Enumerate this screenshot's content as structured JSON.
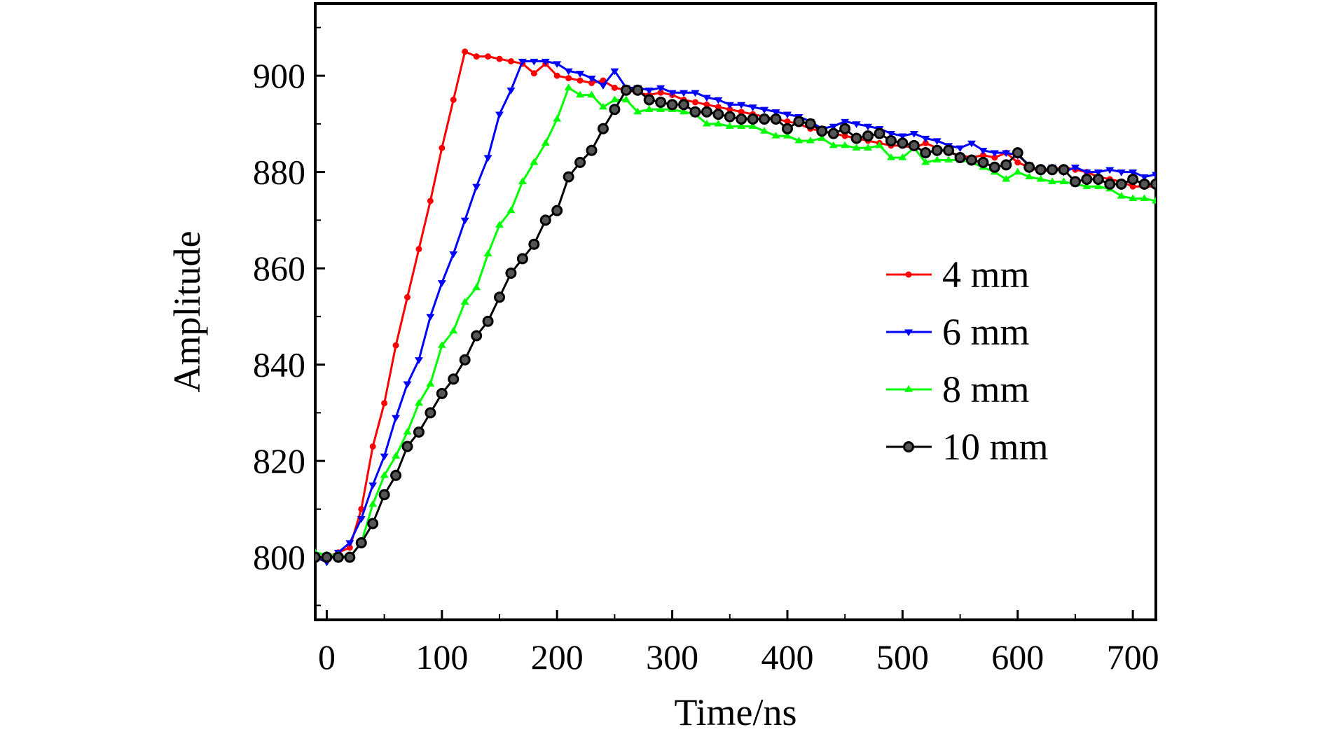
{
  "chart_data": {
    "type": "line",
    "xlabel": "Time/ns",
    "ylabel": "Amplitude",
    "xlim": [
      -10,
      720
    ],
    "ylim": [
      787,
      915
    ],
    "xticks": [
      0,
      100,
      200,
      300,
      400,
      500,
      600,
      700
    ],
    "yticks": [
      800,
      820,
      840,
      860,
      880,
      900
    ],
    "legend_position": "center-right",
    "series": [
      {
        "name": "4 mm",
        "color": "#ff0000",
        "marker": "dot",
        "points": [
          [
            -10,
            800
          ],
          [
            0,
            800
          ],
          [
            10,
            801
          ],
          [
            20,
            802
          ],
          [
            30,
            810
          ],
          [
            40,
            823
          ],
          [
            50,
            832
          ],
          [
            60,
            844
          ],
          [
            70,
            854
          ],
          [
            80,
            864
          ],
          [
            90,
            874
          ],
          [
            100,
            885
          ],
          [
            110,
            895
          ],
          [
            120,
            905
          ],
          [
            130,
            904
          ],
          [
            140,
            904
          ],
          [
            150,
            903.5
          ],
          [
            160,
            903
          ],
          [
            170,
            902.5
          ],
          [
            180,
            900.5
          ],
          [
            190,
            902.5
          ],
          [
            200,
            900
          ],
          [
            210,
            899.5
          ],
          [
            220,
            899
          ],
          [
            230,
            898.5
          ],
          [
            240,
            899
          ],
          [
            250,
            897.5
          ],
          [
            260,
            897
          ],
          [
            270,
            896.5
          ],
          [
            280,
            896
          ],
          [
            290,
            896.5
          ],
          [
            300,
            896
          ],
          [
            310,
            895
          ],
          [
            320,
            894.5
          ],
          [
            330,
            894
          ],
          [
            340,
            893.5
          ],
          [
            350,
            893
          ],
          [
            360,
            892.5
          ],
          [
            370,
            892
          ],
          [
            380,
            891.5
          ],
          [
            390,
            891
          ],
          [
            400,
            890.5
          ],
          [
            410,
            890
          ],
          [
            420,
            889
          ],
          [
            430,
            888.5
          ],
          [
            440,
            888
          ],
          [
            450,
            887.5
          ],
          [
            460,
            887
          ],
          [
            470,
            886.5
          ],
          [
            480,
            886
          ],
          [
            490,
            885.5
          ],
          [
            500,
            885.5
          ],
          [
            510,
            885
          ],
          [
            520,
            886
          ],
          [
            530,
            885
          ],
          [
            540,
            884
          ],
          [
            550,
            883.5
          ],
          [
            560,
            883
          ],
          [
            570,
            883.5
          ],
          [
            580,
            883
          ],
          [
            590,
            884
          ],
          [
            600,
            882
          ],
          [
            610,
            881
          ],
          [
            620,
            880
          ],
          [
            630,
            880.5
          ],
          [
            640,
            881
          ],
          [
            650,
            880.5
          ],
          [
            660,
            880
          ],
          [
            670,
            879
          ],
          [
            680,
            878.5
          ],
          [
            690,
            878
          ],
          [
            700,
            877
          ],
          [
            710,
            877
          ],
          [
            720,
            877
          ]
        ]
      },
      {
        "name": "6 mm",
        "color": "#0000ff",
        "marker": "triangle-down",
        "points": [
          [
            -10,
            800
          ],
          [
            0,
            799
          ],
          [
            10,
            801
          ],
          [
            20,
            803
          ],
          [
            30,
            808
          ],
          [
            40,
            815
          ],
          [
            50,
            821
          ],
          [
            60,
            829
          ],
          [
            70,
            836
          ],
          [
            80,
            841
          ],
          [
            90,
            850
          ],
          [
            100,
            857
          ],
          [
            110,
            863
          ],
          [
            120,
            870
          ],
          [
            130,
            877
          ],
          [
            140,
            883
          ],
          [
            150,
            892
          ],
          [
            160,
            897
          ],
          [
            170,
            903
          ],
          [
            180,
            903
          ],
          [
            190,
            903
          ],
          [
            200,
            902.5
          ],
          [
            210,
            901
          ],
          [
            220,
            900.5
          ],
          [
            230,
            899.5
          ],
          [
            240,
            898
          ],
          [
            250,
            901
          ],
          [
            260,
            897.5
          ],
          [
            270,
            897.5
          ],
          [
            280,
            897
          ],
          [
            290,
            897.5
          ],
          [
            300,
            896.5
          ],
          [
            310,
            896.5
          ],
          [
            320,
            896.5
          ],
          [
            330,
            895.5
          ],
          [
            340,
            895
          ],
          [
            350,
            894
          ],
          [
            360,
            894
          ],
          [
            370,
            893.5
          ],
          [
            380,
            893
          ],
          [
            390,
            892.5
          ],
          [
            400,
            892
          ],
          [
            410,
            891.5
          ],
          [
            420,
            890.5
          ],
          [
            430,
            889
          ],
          [
            440,
            889.5
          ],
          [
            450,
            890.5
          ],
          [
            460,
            890
          ],
          [
            470,
            889.5
          ],
          [
            480,
            889
          ],
          [
            490,
            888
          ],
          [
            500,
            887.5
          ],
          [
            510,
            888
          ],
          [
            520,
            887
          ],
          [
            530,
            886.5
          ],
          [
            540,
            885.5
          ],
          [
            550,
            885
          ],
          [
            560,
            886
          ],
          [
            570,
            884.5
          ],
          [
            580,
            884
          ],
          [
            590,
            884
          ],
          [
            600,
            883.5
          ],
          [
            610,
            881.5
          ],
          [
            620,
            880
          ],
          [
            630,
            881
          ],
          [
            640,
            880
          ],
          [
            650,
            881
          ],
          [
            660,
            880
          ],
          [
            670,
            880
          ],
          [
            680,
            880.5
          ],
          [
            690,
            880
          ],
          [
            700,
            880
          ],
          [
            710,
            879
          ],
          [
            720,
            879.5
          ]
        ]
      },
      {
        "name": "8 mm",
        "color": "#00ff00",
        "marker": "triangle-up",
        "points": [
          [
            -10,
            801
          ],
          [
            0,
            800.5
          ],
          [
            10,
            800.5
          ],
          [
            20,
            800
          ],
          [
            30,
            803
          ],
          [
            40,
            811
          ],
          [
            50,
            817
          ],
          [
            60,
            821
          ],
          [
            70,
            826
          ],
          [
            80,
            832
          ],
          [
            90,
            836
          ],
          [
            100,
            844
          ],
          [
            110,
            847
          ],
          [
            120,
            853
          ],
          [
            130,
            856
          ],
          [
            140,
            863
          ],
          [
            150,
            869
          ],
          [
            160,
            872
          ],
          [
            170,
            878
          ],
          [
            180,
            882
          ],
          [
            190,
            886
          ],
          [
            200,
            891
          ],
          [
            210,
            897.5
          ],
          [
            220,
            896
          ],
          [
            230,
            896
          ],
          [
            240,
            893.5
          ],
          [
            250,
            895
          ],
          [
            260,
            895
          ],
          [
            270,
            892.5
          ],
          [
            280,
            893
          ],
          [
            290,
            893
          ],
          [
            300,
            893
          ],
          [
            310,
            892.5
          ],
          [
            320,
            892
          ],
          [
            330,
            890
          ],
          [
            340,
            890
          ],
          [
            350,
            889.5
          ],
          [
            360,
            889.5
          ],
          [
            370,
            889.5
          ],
          [
            380,
            888.5
          ],
          [
            390,
            887.5
          ],
          [
            400,
            887.5
          ],
          [
            410,
            886.5
          ],
          [
            420,
            886.5
          ],
          [
            430,
            887
          ],
          [
            440,
            885.5
          ],
          [
            450,
            885.5
          ],
          [
            460,
            885
          ],
          [
            470,
            885
          ],
          [
            480,
            885.5
          ],
          [
            490,
            883
          ],
          [
            500,
            883
          ],
          [
            510,
            885
          ],
          [
            520,
            882
          ],
          [
            530,
            882.5
          ],
          [
            540,
            882.5
          ],
          [
            550,
            882.5
          ],
          [
            560,
            882
          ],
          [
            570,
            881
          ],
          [
            580,
            880
          ],
          [
            590,
            878.5
          ],
          [
            600,
            880
          ],
          [
            610,
            879
          ],
          [
            620,
            878.5
          ],
          [
            630,
            878
          ],
          [
            640,
            878
          ],
          [
            650,
            877.5
          ],
          [
            660,
            877
          ],
          [
            670,
            877
          ],
          [
            680,
            876.5
          ],
          [
            690,
            875
          ],
          [
            700,
            874.5
          ],
          [
            710,
            874.5
          ],
          [
            720,
            874
          ]
        ]
      },
      {
        "name": "10 mm",
        "color": "#000000",
        "marker": "circle",
        "points": [
          [
            -10,
            800
          ],
          [
            0,
            800
          ],
          [
            10,
            800
          ],
          [
            20,
            800
          ],
          [
            30,
            803
          ],
          [
            40,
            807
          ],
          [
            50,
            813
          ],
          [
            60,
            817
          ],
          [
            70,
            823
          ],
          [
            80,
            826
          ],
          [
            90,
            830
          ],
          [
            100,
            834
          ],
          [
            110,
            837
          ],
          [
            120,
            841
          ],
          [
            130,
            846
          ],
          [
            140,
            849
          ],
          [
            150,
            854
          ],
          [
            160,
            859
          ],
          [
            170,
            862
          ],
          [
            180,
            865
          ],
          [
            190,
            870
          ],
          [
            200,
            872
          ],
          [
            210,
            879
          ],
          [
            220,
            882
          ],
          [
            230,
            884.5
          ],
          [
            240,
            889
          ],
          [
            250,
            893
          ],
          [
            260,
            897
          ],
          [
            270,
            897
          ],
          [
            280,
            895
          ],
          [
            290,
            894.5
          ],
          [
            300,
            894
          ],
          [
            310,
            894
          ],
          [
            320,
            892.5
          ],
          [
            330,
            892.5
          ],
          [
            340,
            892
          ],
          [
            350,
            891.5
          ],
          [
            360,
            891
          ],
          [
            370,
            891
          ],
          [
            380,
            891
          ],
          [
            390,
            891
          ],
          [
            400,
            889
          ],
          [
            410,
            890.5
          ],
          [
            420,
            890
          ],
          [
            430,
            888.5
          ],
          [
            440,
            888
          ],
          [
            450,
            889
          ],
          [
            460,
            887
          ],
          [
            470,
            887.5
          ],
          [
            480,
            888
          ],
          [
            490,
            886.5
          ],
          [
            500,
            886
          ],
          [
            510,
            885.5
          ],
          [
            520,
            884
          ],
          [
            530,
            884.5
          ],
          [
            540,
            884.5
          ],
          [
            550,
            883
          ],
          [
            560,
            882.5
          ],
          [
            570,
            882
          ],
          [
            580,
            881
          ],
          [
            590,
            881.5
          ],
          [
            600,
            884
          ],
          [
            610,
            881
          ],
          [
            620,
            880.5
          ],
          [
            630,
            880.5
          ],
          [
            640,
            880.5
          ],
          [
            650,
            878
          ],
          [
            660,
            878.5
          ],
          [
            670,
            878.5
          ],
          [
            680,
            877.5
          ],
          [
            690,
            877.5
          ],
          [
            700,
            878.5
          ],
          [
            710,
            877.5
          ],
          [
            720,
            877.5
          ]
        ]
      }
    ]
  }
}
